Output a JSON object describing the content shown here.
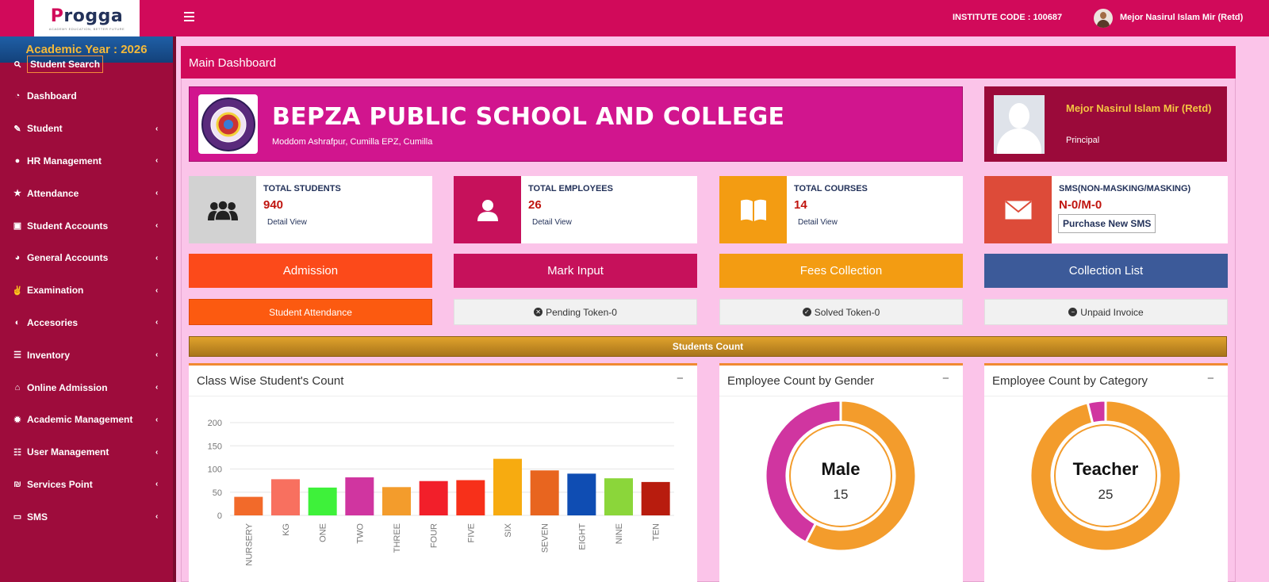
{
  "header": {
    "logo_main": "rogga",
    "logo_p": "P",
    "logo_tagline": "ACADEMY EDUCATION, BETTER FUTURE",
    "institute_code": "INSTITUTE CODE : 100687",
    "user_name": "Mejor Nasirul Islam Mir (Retd)"
  },
  "sidebar": {
    "academic_year": "Academic Year : 2026",
    "items": [
      {
        "label": "Student Search",
        "icon": "search-icon"
      },
      {
        "label": "Dashboard",
        "icon": "dashboard-icon"
      },
      {
        "label": "Student",
        "icon": "edit-icon"
      },
      {
        "label": "HR Management",
        "icon": "circle-icon"
      },
      {
        "label": "Attendance",
        "icon": "star-icon"
      },
      {
        "label": "Student Accounts",
        "icon": "card-icon"
      },
      {
        "label": "General Accounts",
        "icon": "pie-chart-icon"
      },
      {
        "label": "Examination",
        "icon": "medal-icon"
      },
      {
        "label": "Accesories",
        "icon": "half-circle-icon"
      },
      {
        "label": "Inventory",
        "icon": "list-icon"
      },
      {
        "label": "Online Admission",
        "icon": "institution-icon"
      },
      {
        "label": "Academic Management",
        "icon": "gear-icon"
      },
      {
        "label": "User Management",
        "icon": "list-alt-icon"
      },
      {
        "label": "Services Point",
        "icon": "services-icon"
      },
      {
        "label": "SMS",
        "icon": "sms-icon"
      }
    ]
  },
  "main": {
    "title": "Main Dashboard",
    "school": {
      "name": "BEPZA PUBLIC SCHOOL AND COLLEGE",
      "address": "Moddom Ashrafpur, Cumilla EPZ, Cumilla",
      "logo_text": "BEPZA PUBLIC SCHOOL & COLLEGE · CUMILLA EPZ"
    },
    "principal": {
      "name": "Mejor Nasirul Islam Mir (Retd)",
      "role": "Principal"
    },
    "stats": [
      {
        "title": "TOTAL STUDENTS",
        "count": "940",
        "link": "Detail View",
        "icon": "users-icon",
        "color": "#d2d2d2"
      },
      {
        "title": "TOTAL EMPLOYEES",
        "count": "26",
        "link": "Detail View",
        "icon": "user-icon",
        "color": "#c6115b"
      },
      {
        "title": "TOTAL COURSES",
        "count": "14",
        "link": "Detail View",
        "icon": "book-icon",
        "color": "#f39c12"
      },
      {
        "title": "SMS(NON-MASKING/MASKING)",
        "count": "N-0/M-0",
        "button": "Purchase New SMS",
        "icon": "envelope-icon",
        "color": "#dd4b39"
      }
    ],
    "actions": [
      {
        "label": "Admission",
        "color": "#fc4a1a"
      },
      {
        "label": "Mark Input",
        "color": "#c6115b"
      },
      {
        "label": "Fees Collection",
        "color": "#f39c12"
      },
      {
        "label": "Collection List",
        "color": "#3c5a99"
      }
    ],
    "tokens": [
      {
        "label": "Student Attendance"
      },
      {
        "label": "Pending Token-0",
        "icon": "times-circle-icon"
      },
      {
        "label": "Solved Token-0",
        "icon": "check-circle-icon"
      },
      {
        "label": "Unpaid Invoice",
        "icon": "minus-circle-icon"
      }
    ],
    "count_bar": "Students Count",
    "charts": {
      "class_title": "Class Wise Student's Count",
      "gender_title": "Employee Count by Gender",
      "category_title": "Employee Count by Category",
      "minimize": "−"
    }
  },
  "chart_data": [
    {
      "type": "bar",
      "title": "Class Wise Student's Count",
      "categories": [
        "NURSERY",
        "KG",
        "ONE",
        "TWO",
        "THREE",
        "FOUR",
        "FIVE",
        "SIX",
        "SEVEN",
        "EIGHT",
        "NINE",
        "TEN"
      ],
      "values": [
        40,
        78,
        60,
        82,
        61,
        74,
        76,
        122,
        97,
        90,
        80,
        72
      ],
      "colors": [
        "#f26a2a",
        "#f8705f",
        "#3ef13a",
        "#d035a0",
        "#f39c2c",
        "#f21f2a",
        "#f7301a",
        "#f7ab10",
        "#e8651f",
        "#0f4db3",
        "#8bd63a",
        "#b81c0e"
      ],
      "ylim": [
        0,
        200
      ],
      "yticks": [
        0,
        50,
        100,
        150,
        200
      ],
      "grid": true
    },
    {
      "type": "pie",
      "title": "Employee Count by Gender",
      "center_label": "Male",
      "center_value": "15",
      "slices": [
        {
          "value": 15,
          "color": "#f39c2c"
        },
        {
          "value": 11,
          "color": "#d035a0"
        }
      ]
    },
    {
      "type": "pie",
      "title": "Employee Count by Category",
      "center_label": "Teacher",
      "center_value": "25",
      "slices": [
        {
          "value": 25,
          "color": "#f39c2c"
        },
        {
          "value": 1,
          "color": "#d035a0"
        }
      ]
    }
  ]
}
